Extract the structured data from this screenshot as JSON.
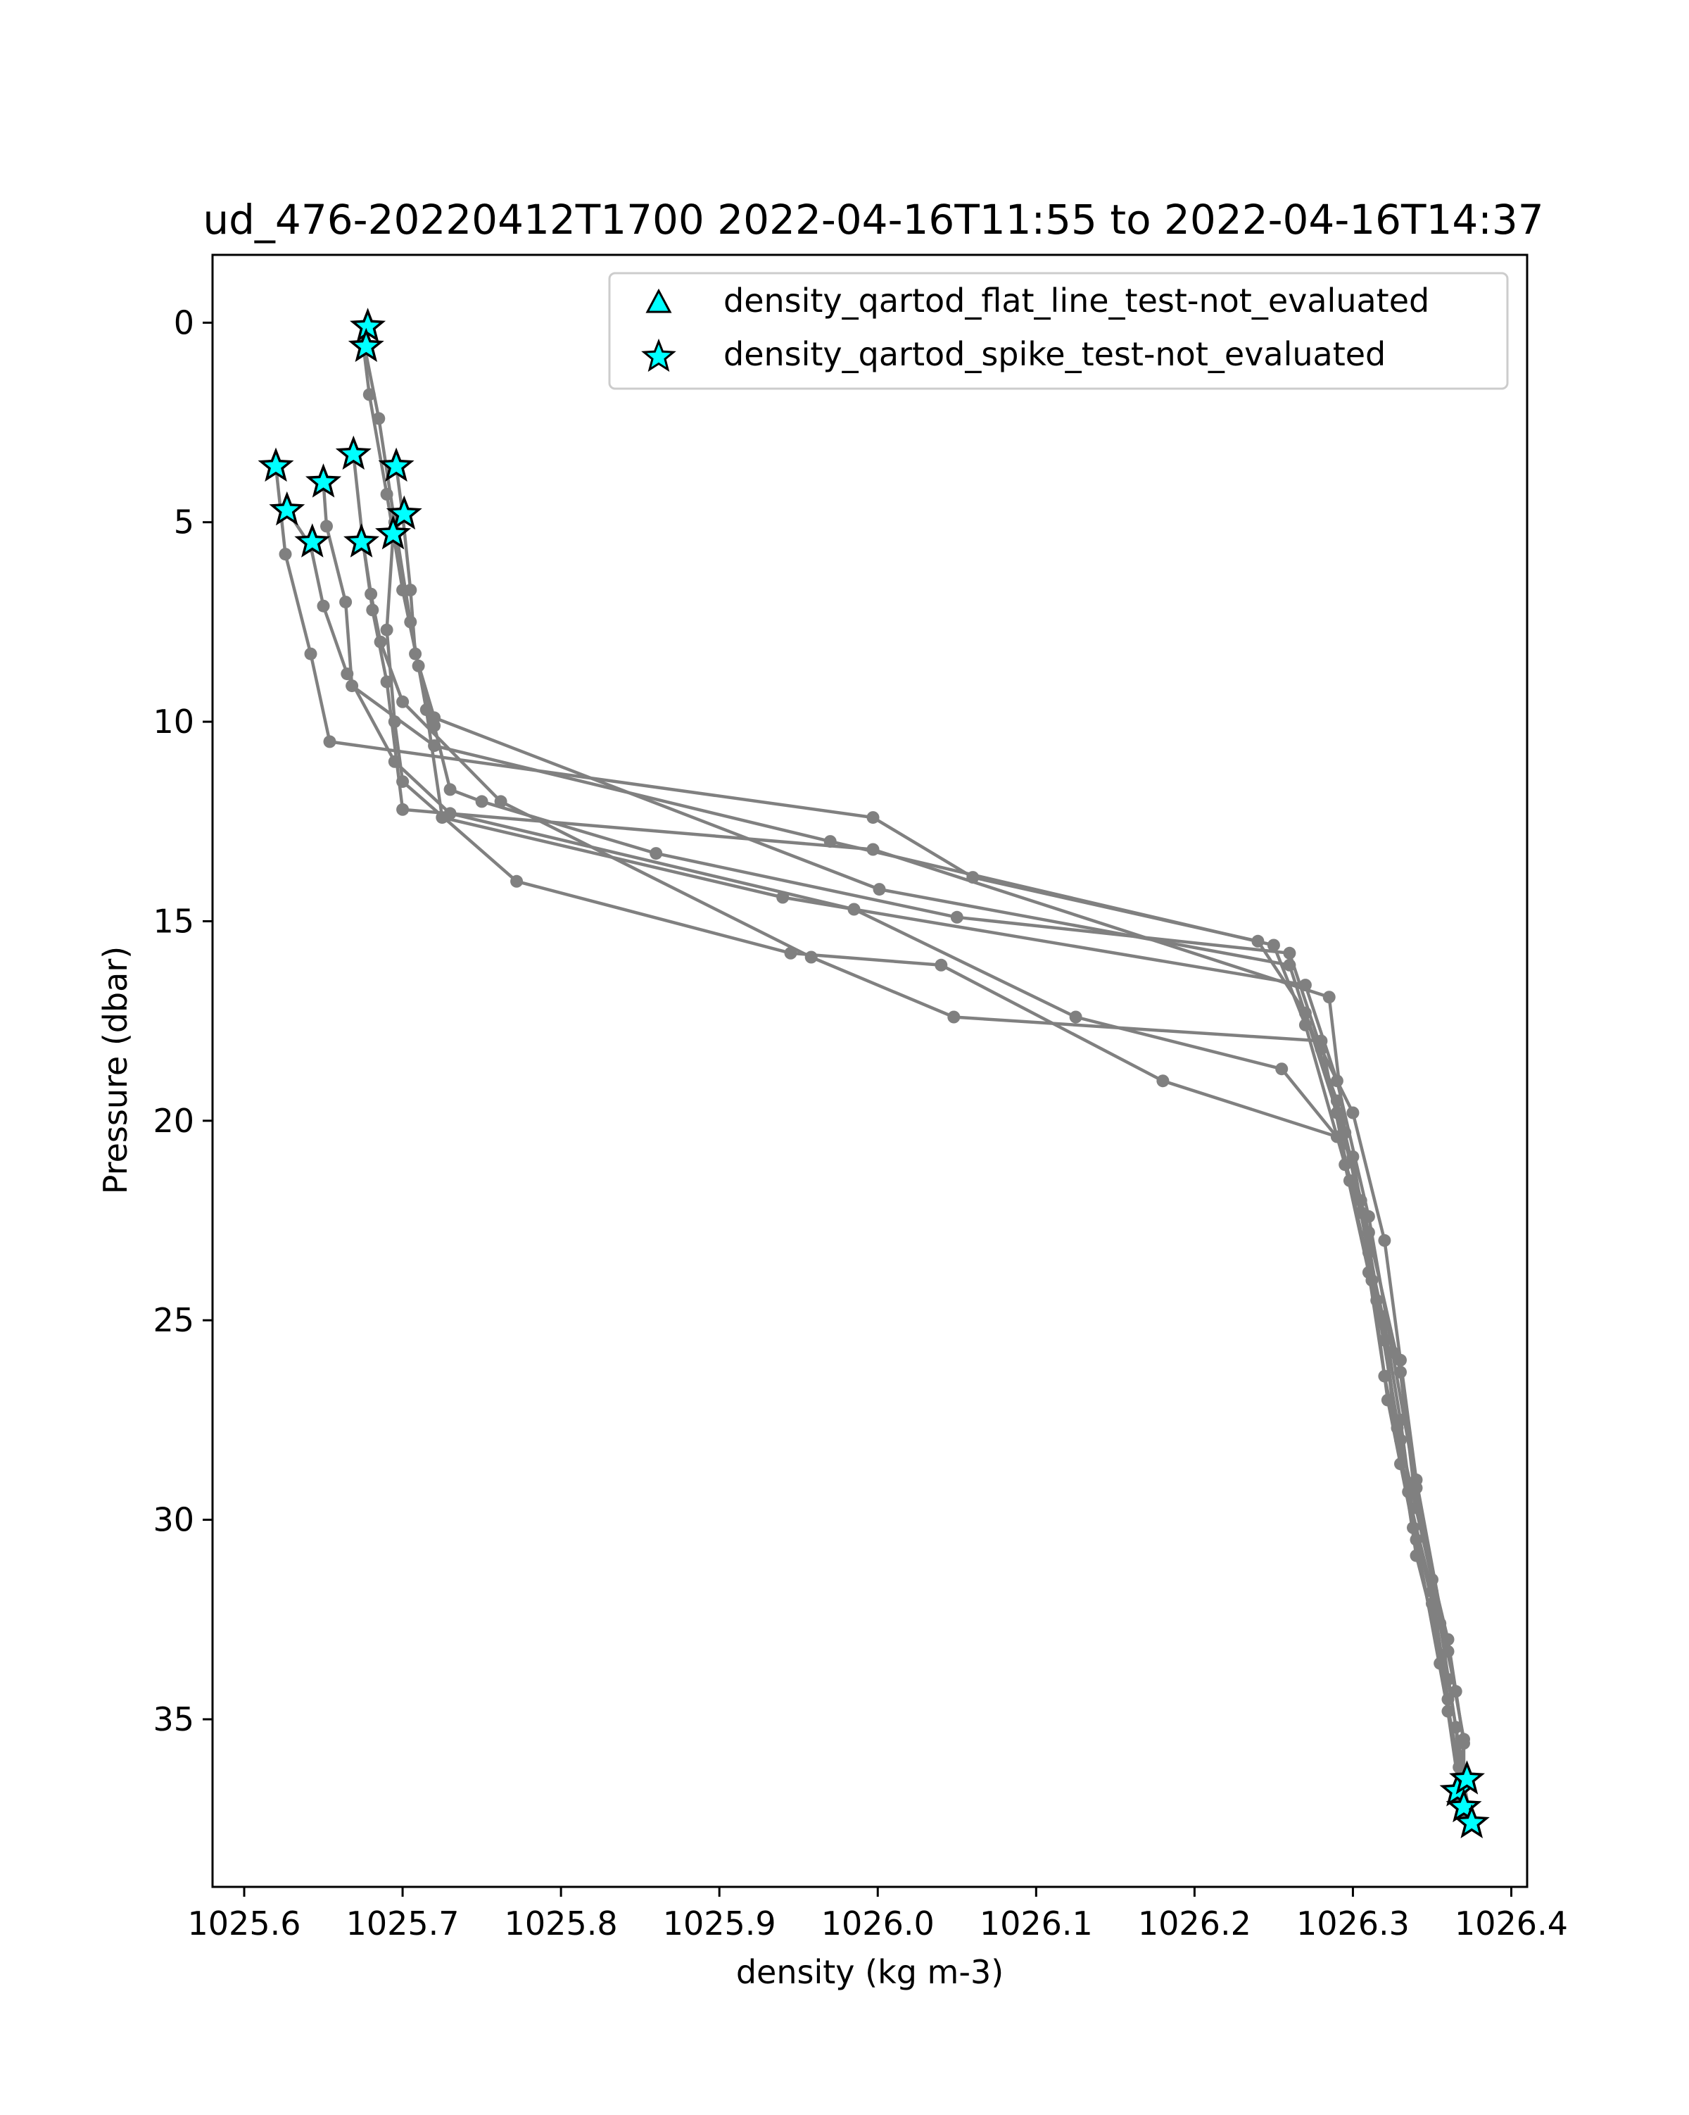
{
  "chart_data": {
    "type": "line",
    "title": "ud_476-20220412T1700 2022-04-16T11:55 to 2022-04-16T14:37",
    "xlabel": "density (kg m-3)",
    "ylabel": "Pressure (dbar)",
    "xlim": [
      1025.58,
      1026.41
    ],
    "ylim": [
      39.2,
      -1.7
    ],
    "y_inverted": true,
    "grid": false,
    "legend_position": "top-right",
    "x_ticks": [
      1025.6,
      1025.7,
      1025.8,
      1025.9,
      1026.0,
      1026.1,
      1026.2,
      1026.3,
      1026.4
    ],
    "x_tick_labels": [
      "1025.6",
      "1025.7",
      "1025.8",
      "1025.9",
      "1026.0",
      "1026.1",
      "1026.2",
      "1026.3",
      "1026.4"
    ],
    "y_ticks": [
      0,
      5,
      10,
      15,
      20,
      25,
      30,
      35
    ],
    "y_tick_labels": [
      "0",
      "5",
      "10",
      "15",
      "20",
      "25",
      "30",
      "35"
    ],
    "colors": {
      "profile_line": "#808080",
      "marker_fill": "#00ffff",
      "marker_edge": "#000000"
    },
    "legend": [
      {
        "label": "density_qartod_flat_line_test-not_evaluated",
        "marker": "triangle"
      },
      {
        "label": "density_qartod_spike_test-not_evaluated",
        "marker": "star"
      }
    ],
    "series": [
      {
        "values": [
          [
            1025.677,
            0.1
          ],
          [
            1025.675,
            0.5
          ],
          [
            1025.679,
            1.8
          ],
          [
            1025.69,
            4.3
          ],
          [
            1025.7,
            6.7
          ],
          [
            1025.71,
            8.6
          ],
          [
            1025.72,
            10.1
          ],
          [
            1025.73,
            11.7
          ],
          [
            1025.75,
            12.0
          ],
          [
            1025.86,
            13.3
          ],
          [
            1026.05,
            14.9
          ],
          [
            1026.26,
            15.8
          ],
          [
            1026.28,
            18.2
          ],
          [
            1026.3,
            19.8
          ],
          [
            1026.32,
            23.0
          ],
          [
            1026.33,
            26.0
          ],
          [
            1026.34,
            29.0
          ],
          [
            1026.36,
            33.3
          ],
          [
            1026.37,
            35.5
          ],
          [
            1026.37,
            36.6
          ],
          [
            1026.375,
            37.6
          ]
        ]
      },
      {
        "values": [
          [
            1025.677,
            0.2
          ],
          [
            1025.676,
            0.6
          ],
          [
            1025.685,
            2.4
          ],
          [
            1025.695,
            5.0
          ],
          [
            1025.705,
            7.5
          ],
          [
            1025.715,
            9.7
          ],
          [
            1025.725,
            12.4
          ],
          [
            1025.94,
            14.4
          ],
          [
            1026.27,
            16.6
          ],
          [
            1026.29,
            19.0
          ],
          [
            1026.31,
            22.4
          ],
          [
            1026.325,
            25.8
          ],
          [
            1026.34,
            29.2
          ],
          [
            1026.355,
            32.6
          ],
          [
            1026.365,
            35.2
          ],
          [
            1026.37,
            37.2
          ]
        ]
      },
      {
        "values": [
          [
            1025.62,
            3.6
          ],
          [
            1025.626,
            5.8
          ],
          [
            1025.642,
            8.3
          ],
          [
            1025.654,
            10.5
          ],
          [
            1025.997,
            12.4
          ],
          [
            1026.06,
            13.9
          ],
          [
            1026.24,
            15.5
          ],
          [
            1026.27,
            17.3
          ],
          [
            1026.29,
            19.5
          ],
          [
            1026.31,
            22.8
          ],
          [
            1026.33,
            26.3
          ],
          [
            1026.34,
            29.7
          ],
          [
            1026.36,
            33.0
          ],
          [
            1026.37,
            35.6
          ],
          [
            1026.366,
            36.8
          ]
        ]
      },
      {
        "values": [
          [
            1025.627,
            4.7
          ],
          [
            1025.642,
            5.6
          ],
          [
            1025.65,
            7.1
          ],
          [
            1025.665,
            8.8
          ],
          [
            1025.695,
            11.0
          ],
          [
            1025.73,
            12.3
          ],
          [
            1025.985,
            14.7
          ],
          [
            1026.125,
            17.4
          ],
          [
            1026.255,
            18.7
          ],
          [
            1026.3,
            20.9
          ],
          [
            1026.315,
            24.5
          ],
          [
            1026.33,
            28.0
          ],
          [
            1026.35,
            31.5
          ],
          [
            1026.365,
            34.3
          ]
        ]
      },
      {
        "values": [
          [
            1025.65,
            4.0
          ],
          [
            1025.652,
            5.1
          ],
          [
            1025.664,
            7.0
          ],
          [
            1025.668,
            9.1
          ],
          [
            1025.72,
            10.6
          ],
          [
            1025.97,
            13.0
          ],
          [
            1026.25,
            15.6
          ],
          [
            1026.27,
            17.6
          ],
          [
            1026.295,
            21.1
          ],
          [
            1026.31,
            23.8
          ],
          [
            1026.32,
            26.4
          ],
          [
            1026.335,
            29.3
          ],
          [
            1026.35,
            32.1
          ],
          [
            1026.368,
            37.0
          ]
        ]
      },
      {
        "values": [
          [
            1025.669,
            3.3
          ],
          [
            1025.675,
            5.5
          ],
          [
            1025.681,
            7.2
          ],
          [
            1025.69,
            9.0
          ],
          [
            1025.7,
            12.2
          ],
          [
            1025.997,
            13.2
          ],
          [
            1026.285,
            16.9
          ],
          [
            1026.295,
            20.3
          ],
          [
            1026.31,
            23.3
          ],
          [
            1026.32,
            25.1
          ],
          [
            1026.33,
            27.5
          ],
          [
            1026.34,
            30.5
          ],
          [
            1026.36,
            34.8
          ],
          [
            1026.373,
            37.4
          ]
        ]
      },
      {
        "values": [
          [
            1025.696,
            3.6
          ],
          [
            1025.7,
            4.8
          ],
          [
            1025.705,
            6.7
          ],
          [
            1025.708,
            8.3
          ],
          [
            1025.72,
            9.9
          ],
          [
            1026.001,
            14.2
          ],
          [
            1026.26,
            16.1
          ],
          [
            1026.29,
            19.8
          ],
          [
            1026.305,
            22.0
          ],
          [
            1026.318,
            24.9
          ],
          [
            1026.328,
            27.7
          ],
          [
            1026.34,
            30.9
          ],
          [
            1026.36,
            34.0
          ],
          [
            1026.37,
            36.4
          ]
        ]
      },
      {
        "values": [
          [
            1025.694,
            5.3
          ],
          [
            1025.69,
            7.7
          ],
          [
            1025.695,
            10.0
          ],
          [
            1025.7,
            11.5
          ],
          [
            1025.772,
            14.0
          ],
          [
            1025.945,
            15.8
          ],
          [
            1026.04,
            16.1
          ],
          [
            1026.18,
            19.0
          ],
          [
            1026.29,
            20.4
          ],
          [
            1026.305,
            22.3
          ],
          [
            1026.32,
            25.5
          ],
          [
            1026.33,
            28.6
          ],
          [
            1026.35,
            31.8
          ],
          [
            1026.36,
            34.5
          ]
        ]
      },
      {
        "values": [
          [
            1025.675,
            5.5
          ],
          [
            1025.68,
            6.8
          ],
          [
            1025.686,
            8.0
          ],
          [
            1025.7,
            9.5
          ],
          [
            1025.762,
            12.0
          ],
          [
            1025.958,
            15.9
          ],
          [
            1026.048,
            17.4
          ],
          [
            1026.28,
            18.0
          ],
          [
            1026.298,
            21.5
          ],
          [
            1026.312,
            24.0
          ],
          [
            1026.322,
            27.0
          ],
          [
            1026.338,
            30.2
          ],
          [
            1026.355,
            33.6
          ],
          [
            1026.367,
            36.2
          ]
        ]
      }
    ],
    "flat_line_markers": [],
    "spike_markers": [
      [
        1025.678,
        0.1
      ],
      [
        1025.677,
        0.6
      ],
      [
        1025.62,
        3.6
      ],
      [
        1025.627,
        4.7
      ],
      [
        1025.643,
        5.5
      ],
      [
        1025.65,
        4.0
      ],
      [
        1025.669,
        3.3
      ],
      [
        1025.696,
        3.6
      ],
      [
        1025.701,
        4.8
      ],
      [
        1025.694,
        5.3
      ],
      [
        1025.674,
        5.5
      ],
      [
        1026.366,
        36.8
      ],
      [
        1026.372,
        36.5
      ],
      [
        1026.37,
        37.2
      ],
      [
        1026.375,
        37.6
      ]
    ]
  }
}
